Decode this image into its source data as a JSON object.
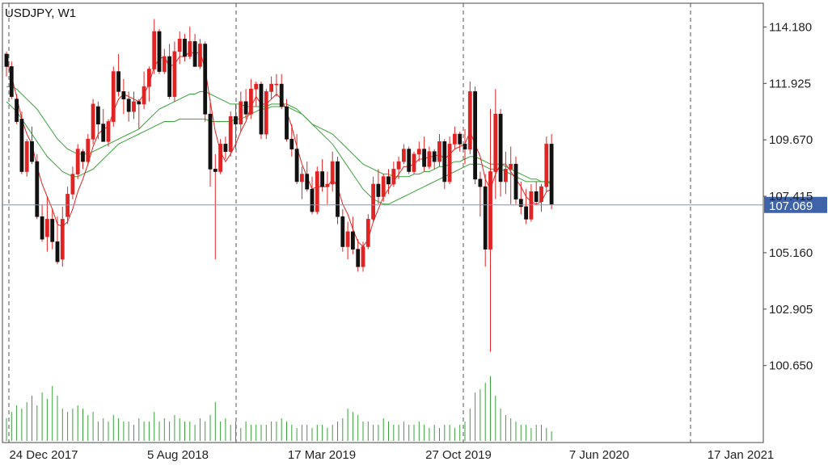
{
  "symbol_title": "USDJPY, W1",
  "colors": {
    "bull": "#ffffff",
    "bear": "#e02424",
    "wick": "#e02424",
    "ma_fast": "#e02424",
    "ma_slow": "#3aa13a",
    "volume": "#3aa13a",
    "price_line": "#7c93b8",
    "price_label_bg": "#3f63a8",
    "grid": "#555555"
  },
  "chart_data": {
    "type": "candlestick",
    "title": "USDJPY, W1",
    "price_axis_ticks": [
      "114.180",
      "111.925",
      "109.670",
      "107.415",
      "105.160",
      "102.905",
      "100.650"
    ],
    "price_tick_values": [
      114.18,
      111.925,
      109.67,
      107.415,
      105.16,
      102.905,
      100.65
    ],
    "time_axis_ticks": [
      "24 Dec 2017",
      "5 Aug 2018",
      "17 Mar 2019",
      "27 Oct 2019",
      "7 Jun 2020",
      "17 Jan 2021"
    ],
    "ylim": [
      98.8,
      115.0
    ],
    "current_price": 107.069,
    "current_price_label": "107.069",
    "grid": "vertical-dashed",
    "series_ma_fast": "red moving average",
    "series_ma_slow": "green moving averages",
    "candles": [
      [
        113.1,
        113.2,
        112.2,
        112.6
      ],
      [
        112.6,
        112.8,
        111.3,
        111.4
      ],
      [
        111.3,
        111.5,
        110.3,
        110.4
      ],
      [
        110.5,
        110.8,
        108.3,
        108.4
      ],
      [
        108.4,
        109.7,
        108.2,
        109.6
      ],
      [
        109.6,
        110.2,
        108.7,
        108.8
      ],
      [
        108.8,
        109.1,
        106.5,
        106.6
      ],
      [
        106.6,
        107.1,
        105.6,
        105.7
      ],
      [
        105.8,
        107.4,
        105.2,
        106.5
      ],
      [
        106.5,
        106.9,
        105.3,
        105.6
      ],
      [
        105.6,
        106.6,
        104.7,
        104.8
      ],
      [
        104.9,
        107.0,
        104.6,
        106.5
      ],
      [
        106.6,
        107.8,
        106.3,
        107.5
      ],
      [
        107.5,
        108.6,
        107.3,
        108.3
      ],
      [
        108.3,
        109.5,
        108.1,
        109.3
      ],
      [
        109.2,
        109.3,
        108.5,
        108.8
      ],
      [
        108.8,
        109.9,
        108.7,
        109.7
      ],
      [
        109.7,
        111.3,
        109.5,
        111.1
      ],
      [
        111.0,
        111.2,
        109.7,
        110.3
      ],
      [
        110.3,
        110.9,
        109.6,
        109.6
      ],
      [
        109.6,
        110.5,
        109.4,
        110.4
      ],
      [
        110.4,
        112.6,
        110.2,
        112.4
      ],
      [
        112.4,
        113.1,
        111.4,
        111.6
      ],
      [
        111.6,
        112.1,
        110.7,
        111.3
      ],
      [
        111.3,
        111.6,
        110.4,
        110.8
      ],
      [
        110.8,
        111.6,
        110.5,
        111.2
      ],
      [
        111.2,
        111.3,
        110.1,
        111.1
      ],
      [
        111.1,
        112.4,
        110.9,
        111.8
      ],
      [
        111.8,
        112.6,
        111.2,
        112.5
      ],
      [
        112.5,
        114.5,
        112.3,
        114.0
      ],
      [
        114.0,
        114.1,
        112.3,
        112.4
      ],
      [
        112.4,
        113.3,
        112.3,
        113.0
      ],
      [
        113.0,
        113.5,
        111.3,
        111.4
      ],
      [
        111.4,
        113.6,
        111.2,
        113.2
      ],
      [
        113.2,
        114.0,
        112.7,
        113.7
      ],
      [
        113.7,
        113.9,
        112.8,
        113.0
      ],
      [
        113.0,
        114.2,
        112.9,
        113.6
      ],
      [
        113.6,
        113.9,
        112.7,
        112.6
      ],
      [
        112.6,
        113.7,
        112.5,
        113.5
      ],
      [
        113.5,
        113.6,
        110.4,
        110.7
      ],
      [
        110.7,
        111.3,
        107.8,
        108.5
      ],
      [
        108.5,
        109.1,
        104.9,
        108.4
      ],
      [
        108.4,
        109.7,
        108.3,
        109.5
      ],
      [
        109.5,
        109.8,
        108.9,
        109.2
      ],
      [
        109.2,
        110.8,
        109.0,
        110.6
      ],
      [
        110.6,
        111.1,
        109.3,
        110.3
      ],
      [
        110.3,
        111.6,
        110.0,
        111.2
      ],
      [
        111.2,
        111.7,
        110.5,
        110.7
      ],
      [
        110.7,
        112.1,
        110.5,
        111.7
      ],
      [
        111.7,
        112.0,
        111.0,
        111.9
      ],
      [
        111.9,
        112.0,
        109.7,
        109.9
      ],
      [
        109.9,
        111.7,
        109.7,
        111.6
      ],
      [
        111.6,
        112.2,
        111.3,
        111.9
      ],
      [
        111.9,
        112.3,
        111.4,
        111.9
      ],
      [
        111.9,
        112.3,
        110.9,
        111.0
      ],
      [
        111.0,
        111.3,
        109.6,
        109.7
      ],
      [
        109.7,
        110.3,
        109.0,
        109.3
      ],
      [
        109.3,
        109.9,
        107.9,
        108.0
      ],
      [
        108.0,
        108.6,
        107.3,
        108.3
      ],
      [
        108.3,
        108.8,
        107.6,
        107.7
      ],
      [
        107.7,
        108.2,
        106.7,
        106.8
      ],
      [
        106.8,
        108.6,
        106.7,
        108.4
      ],
      [
        108.4,
        108.9,
        107.6,
        107.8
      ],
      [
        107.8,
        108.4,
        107.1,
        107.9
      ],
      [
        107.9,
        109.2,
        107.6,
        108.8
      ],
      [
        108.8,
        109.0,
        106.3,
        106.6
      ],
      [
        106.6,
        106.9,
        105.2,
        105.4
      ],
      [
        105.4,
        106.4,
        104.9,
        106.0
      ],
      [
        106.0,
        106.6,
        105.1,
        105.3
      ],
      [
        105.3,
        105.7,
        104.4,
        104.6
      ],
      [
        104.6,
        105.6,
        104.4,
        105.4
      ],
      [
        105.4,
        106.7,
        105.3,
        106.5
      ],
      [
        106.5,
        108.2,
        106.4,
        107.9
      ],
      [
        107.9,
        108.5,
        107.1,
        107.4
      ],
      [
        107.4,
        108.3,
        107.2,
        108.2
      ],
      [
        108.2,
        108.5,
        107.5,
        107.9
      ],
      [
        107.9,
        108.8,
        107.8,
        108.5
      ],
      [
        108.5,
        109.0,
        108.1,
        108.8
      ],
      [
        108.8,
        109.5,
        108.7,
        109.3
      ],
      [
        109.3,
        109.4,
        108.3,
        108.4
      ],
      [
        108.4,
        109.2,
        108.3,
        109.1
      ],
      [
        109.1,
        109.6,
        108.8,
        109.3
      ],
      [
        109.3,
        109.8,
        108.4,
        108.6
      ],
      [
        108.6,
        109.4,
        108.5,
        109.2
      ],
      [
        109.2,
        109.3,
        108.5,
        108.8
      ],
      [
        108.8,
        109.9,
        108.6,
        109.6
      ],
      [
        109.6,
        109.7,
        107.7,
        108.0
      ],
      [
        108.0,
        109.8,
        107.9,
        109.5
      ],
      [
        109.5,
        110.2,
        109.3,
        109.9
      ],
      [
        109.9,
        110.0,
        109.2,
        109.5
      ],
      [
        109.5,
        110.1,
        108.7,
        109.3
      ],
      [
        109.3,
        112.0,
        109.1,
        111.6
      ],
      [
        111.6,
        111.8,
        107.9,
        108.1
      ],
      [
        108.1,
        108.4,
        106.6,
        107.8
      ],
      [
        107.8,
        108.3,
        104.6,
        105.3
      ],
      [
        105.3,
        110.9,
        101.2,
        108.4
      ],
      [
        108.4,
        111.7,
        107.3,
        110.7
      ],
      [
        110.7,
        110.9,
        107.4,
        108.0
      ],
      [
        108.0,
        109.2,
        107.5,
        108.5
      ],
      [
        108.5,
        109.4,
        107.1,
        108.7
      ],
      [
        108.7,
        109.0,
        107.1,
        107.3
      ],
      [
        107.3,
        108.0,
        106.7,
        107.0
      ],
      [
        107.0,
        107.7,
        106.3,
        106.5
      ],
      [
        106.5,
        107.9,
        106.4,
        107.6
      ],
      [
        107.6,
        108.0,
        107.1,
        107.2
      ],
      [
        107.2,
        107.9,
        106.8,
        107.8
      ],
      [
        107.8,
        109.8,
        107.6,
        109.5
      ],
      [
        109.5,
        109.9,
        106.9,
        107.1
      ]
    ],
    "ma_fast_values": [
      112.9,
      112.2,
      111.4,
      110.5,
      109.9,
      109.5,
      108.6,
      107.9,
      107.4,
      106.9,
      106.3,
      106.2,
      106.4,
      106.9,
      107.6,
      108.1,
      108.7,
      109.4,
      109.9,
      110.1,
      110.2,
      110.8,
      111.3,
      111.5,
      111.4,
      111.3,
      111.2,
      111.5,
      111.9,
      112.6,
      112.9,
      113.0,
      112.6,
      112.7,
      113.0,
      113.0,
      113.2,
      113.1,
      113.2,
      112.5,
      111.2,
      110.0,
      109.2,
      108.8,
      109.1,
      109.5,
      110.0,
      110.4,
      111.0,
      111.4,
      111.1,
      111.1,
      111.3,
      111.5,
      111.3,
      110.8,
      110.2,
      109.4,
      108.7,
      108.2,
      107.7,
      107.8,
      107.8,
      107.8,
      108.1,
      107.8,
      107.1,
      106.7,
      106.1,
      105.6,
      105.4,
      105.7,
      106.4,
      106.9,
      107.4,
      107.7,
      108.0,
      108.3,
      108.6,
      108.6,
      108.7,
      108.9,
      108.9,
      109.0,
      109.0,
      109.1,
      108.9,
      109.1,
      109.3,
      109.4,
      109.5,
      110.0,
      109.5,
      109.0,
      108.1,
      107.7,
      108.3,
      108.7,
      108.7,
      108.4,
      108.1,
      107.8,
      107.4,
      107.2,
      107.1,
      107.2,
      107.6,
      107.7
    ],
    "ma_slow1_values": [
      111.8,
      111.8,
      111.7,
      111.5,
      111.3,
      111.1,
      110.9,
      110.6,
      110.3,
      110.0,
      109.7,
      109.5,
      109.3,
      109.2,
      109.1,
      109.1,
      109.1,
      109.2,
      109.3,
      109.4,
      109.5,
      109.6,
      109.7,
      109.8,
      109.9,
      110.0,
      110.1,
      110.3,
      110.5,
      110.7,
      110.9,
      111.0,
      111.1,
      111.2,
      111.3,
      111.4,
      111.5,
      111.5,
      111.6,
      111.6,
      111.5,
      111.4,
      111.3,
      111.2,
      111.1,
      111.1,
      111.1,
      111.0,
      111.0,
      111.0,
      111.0,
      111.0,
      111.1,
      111.1,
      111.1,
      111.1,
      111.0,
      110.9,
      110.7,
      110.5,
      110.3,
      110.2,
      110.1,
      110.0,
      109.9,
      109.7,
      109.5,
      109.3,
      109.1,
      108.9,
      108.7,
      108.6,
      108.5,
      108.4,
      108.3,
      108.3,
      108.2,
      108.2,
      108.2,
      108.2,
      108.3,
      108.3,
      108.4,
      108.4,
      108.5,
      108.6,
      108.6,
      108.7,
      108.8,
      108.8,
      108.9,
      109.0,
      109.0,
      108.9,
      108.8,
      108.7,
      108.7,
      108.7,
      108.6,
      108.5,
      108.4,
      108.3,
      108.2,
      108.1,
      108.1,
      108.0,
      108.0,
      107.9
    ],
    "ma_slow2_values": [
      111.2,
      111.0,
      110.8,
      110.5,
      110.2,
      109.9,
      109.6,
      109.3,
      109.0,
      108.8,
      108.6,
      108.4,
      108.3,
      108.2,
      108.2,
      108.3,
      108.4,
      108.5,
      108.7,
      108.9,
      109.1,
      109.3,
      109.5,
      109.6,
      109.7,
      109.8,
      109.9,
      110.0,
      110.1,
      110.2,
      110.3,
      110.4,
      110.4,
      110.4,
      110.5,
      110.5,
      110.5,
      110.5,
      110.5,
      110.5,
      110.4,
      110.4,
      110.4,
      110.4,
      110.4,
      110.5,
      110.5,
      110.6,
      110.7,
      110.8,
      110.9,
      110.9,
      111.0,
      111.0,
      111.0,
      111.0,
      110.9,
      110.8,
      110.7,
      110.5,
      110.3,
      110.1,
      109.9,
      109.7,
      109.5,
      109.2,
      108.9,
      108.6,
      108.3,
      108.0,
      107.7,
      107.5,
      107.3,
      107.2,
      107.1,
      107.1,
      107.2,
      107.3,
      107.4,
      107.5,
      107.6,
      107.7,
      107.8,
      107.9,
      108.0,
      108.1,
      108.2,
      108.3,
      108.4,
      108.5,
      108.6,
      108.7,
      108.7,
      108.7,
      108.6,
      108.5,
      108.5,
      108.5,
      108.4,
      108.3,
      108.2,
      108.1,
      108.0,
      108.0,
      108.0,
      108.0,
      108.0,
      108.0
    ],
    "volume_values": [
      0.35,
      0.45,
      0.55,
      0.5,
      0.6,
      0.7,
      0.55,
      0.75,
      0.65,
      0.85,
      0.7,
      0.5,
      0.45,
      0.5,
      0.55,
      0.5,
      0.4,
      0.45,
      0.3,
      0.35,
      0.3,
      0.4,
      0.35,
      0.3,
      0.3,
      0.25,
      0.35,
      0.3,
      0.3,
      0.45,
      0.3,
      0.35,
      0.3,
      0.4,
      0.35,
      0.3,
      0.3,
      0.25,
      0.35,
      0.3,
      0.4,
      0.6,
      0.3,
      0.35,
      0.25,
      0.3,
      0.2,
      0.3,
      0.25,
      0.25,
      0.25,
      0.25,
      0.3,
      0.3,
      0.35,
      0.3,
      0.25,
      0.2,
      0.25,
      0.25,
      0.2,
      0.25,
      0.25,
      0.2,
      0.25,
      0.3,
      0.35,
      0.5,
      0.45,
      0.4,
      0.3,
      0.3,
      0.25,
      0.25,
      0.35,
      0.3,
      0.25,
      0.25,
      0.3,
      0.25,
      0.25,
      0.3,
      0.25,
      0.2,
      0.25,
      0.2,
      0.25,
      0.25,
      0.2,
      0.25,
      0.3,
      0.5,
      0.75,
      0.8,
      0.9,
      1.0,
      0.7,
      0.5,
      0.4,
      0.35,
      0.3,
      0.25,
      0.25,
      0.2,
      0.25,
      0.25,
      0.2,
      0.15
    ]
  }
}
